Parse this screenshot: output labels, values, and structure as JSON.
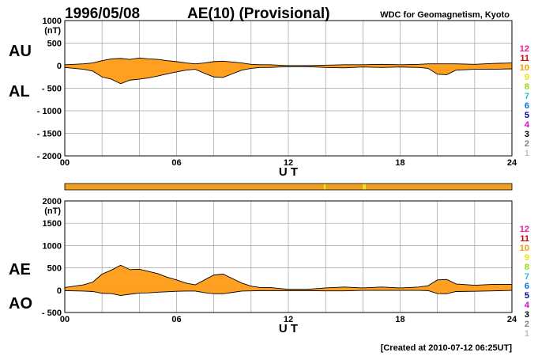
{
  "header": {
    "date": "1996/05/08",
    "title": "AE(10) (Provisional)",
    "source": "WDC for Geomagnetism, Kyoto"
  },
  "footer": {
    "created": "[Created at 2010-07-12 06:25UT]"
  },
  "colors": {
    "fill": "#ffa020",
    "bar": "#f0a020",
    "bar_highlight": "#e8e820",
    "grid": "#a0a0a0"
  },
  "station_scale": [
    {
      "label": "12",
      "color": "#ff1493"
    },
    {
      "label": "11",
      "color": "#e00000"
    },
    {
      "label": "10",
      "color": "#ff9900"
    },
    {
      "label": "9",
      "color": "#e8e800"
    },
    {
      "label": "8",
      "color": "#90e000"
    },
    {
      "label": "7",
      "color": "#20c0e0"
    },
    {
      "label": "6",
      "color": "#0070ff"
    },
    {
      "label": "5",
      "color": "#0000b0"
    },
    {
      "label": "4",
      "color": "#e000e0"
    },
    {
      "label": "3",
      "color": "#000000"
    },
    {
      "label": "2",
      "color": "#808080"
    },
    {
      "label": "1",
      "color": "#c0c0c0"
    }
  ],
  "station_bar": {
    "x": [
      0,
      24
    ],
    "highlights": [
      {
        "from": 13.9,
        "to": 14.0
      },
      {
        "from": 16.0,
        "to": 16.15
      }
    ]
  },
  "chart_data": [
    {
      "type": "area",
      "panel": "AU/AL",
      "labels": [
        "AU",
        "AL"
      ],
      "unit": "(nT)",
      "xlabel": "U T",
      "xlim": [
        0,
        24
      ],
      "ylim": [
        -2000,
        1000
      ],
      "xticks": [
        "00",
        "06",
        "12",
        "18",
        "24"
      ],
      "yticks": [
        "1000",
        "500",
        "0",
        "- 500",
        "- 1000",
        "- 1500",
        "- 2000"
      ],
      "x": [
        0,
        0.5,
        1,
        1.5,
        2,
        2.5,
        3,
        3.5,
        4,
        4.5,
        5,
        5.5,
        6,
        6.5,
        7,
        7.5,
        8,
        8.5,
        9,
        9.5,
        10,
        10.5,
        11,
        11.5,
        12,
        13,
        14,
        15,
        16,
        17,
        18,
        19,
        19.5,
        20,
        20.5,
        21,
        22,
        23,
        24
      ],
      "AU": [
        20,
        30,
        40,
        60,
        110,
        150,
        160,
        140,
        170,
        150,
        140,
        110,
        90,
        60,
        40,
        60,
        90,
        100,
        80,
        60,
        30,
        20,
        20,
        10,
        0,
        0,
        10,
        20,
        20,
        30,
        20,
        30,
        40,
        40,
        40,
        40,
        30,
        50,
        60
      ],
      "AL": [
        -40,
        -60,
        -80,
        -120,
        -250,
        -300,
        -400,
        -320,
        -300,
        -270,
        -230,
        -180,
        -140,
        -100,
        -80,
        -170,
        -250,
        -260,
        -180,
        -100,
        -60,
        -40,
        -40,
        -30,
        -20,
        -20,
        -40,
        -50,
        -30,
        -40,
        -30,
        -40,
        -60,
        -190,
        -200,
        -100,
        -80,
        -80,
        -70
      ]
    },
    {
      "type": "area",
      "panel": "AE/AO",
      "labels": [
        "AE",
        "AO"
      ],
      "unit": "(nT)",
      "xlabel": "U T",
      "xlim": [
        0,
        24
      ],
      "ylim": [
        -500,
        2000
      ],
      "xticks": [
        "00",
        "06",
        "12",
        "18",
        "24"
      ],
      "yticks": [
        "2000",
        "1500",
        "1000",
        "500",
        "0",
        "- 500"
      ],
      "x": [
        0,
        0.5,
        1,
        1.5,
        2,
        2.5,
        3,
        3.5,
        4,
        4.5,
        5,
        5.5,
        6,
        6.5,
        7,
        7.5,
        8,
        8.5,
        9,
        9.5,
        10,
        10.5,
        11,
        11.5,
        12,
        13,
        14,
        15,
        16,
        17,
        18,
        19,
        19.5,
        20,
        20.5,
        21,
        22,
        23,
        24
      ],
      "AE": [
        60,
        90,
        120,
        180,
        360,
        450,
        560,
        460,
        470,
        420,
        370,
        290,
        230,
        160,
        120,
        230,
        340,
        360,
        260,
        160,
        90,
        60,
        60,
        40,
        20,
        20,
        50,
        70,
        50,
        70,
        50,
        70,
        100,
        230,
        240,
        140,
        110,
        130,
        130
      ],
      "AO": [
        -10,
        -15,
        -20,
        -30,
        -70,
        -75,
        -120,
        -90,
        -65,
        -60,
        -45,
        -35,
        -25,
        -20,
        -20,
        -55,
        -80,
        -80,
        -50,
        -20,
        -15,
        -10,
        -10,
        -10,
        -10,
        -10,
        -15,
        -15,
        -5,
        -5,
        -5,
        -5,
        -10,
        -75,
        -80,
        -30,
        -25,
        -15,
        -5
      ]
    }
  ]
}
